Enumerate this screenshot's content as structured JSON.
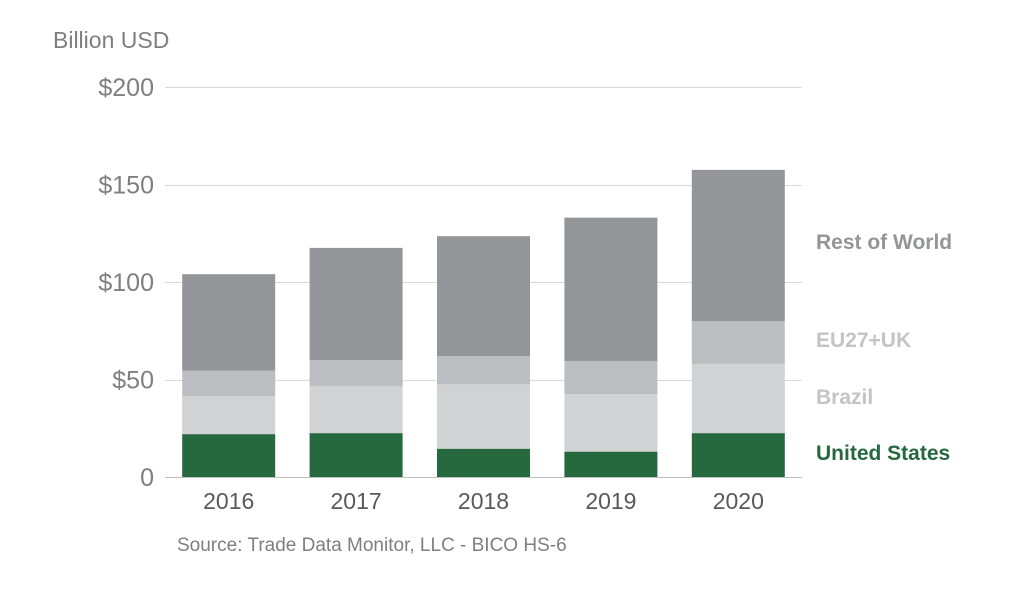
{
  "chart_data": {
    "type": "bar",
    "stacked": true,
    "ylabel": "Billion USD",
    "source": "Source: Trade Data Monitor, LLC - BICO HS-6",
    "categories": [
      "2016",
      "2017",
      "2018",
      "2019",
      "2020"
    ],
    "ylim": [
      0,
      200
    ],
    "yticks": [
      0,
      50,
      100,
      150,
      200
    ],
    "ytick_labels": [
      "0",
      "$50",
      "$100",
      "$150",
      "$200"
    ],
    "grid": true,
    "legend_position": "right",
    "series": [
      {
        "name": "United States",
        "color": "#27693f",
        "values": [
          22,
          22.5,
          14.5,
          13,
          22.5
        ]
      },
      {
        "name": "Brazil",
        "color": "#d1d2d4",
        "values": [
          19.5,
          24,
          33,
          29.5,
          35.5
        ]
      },
      {
        "name": "EU27+UK",
        "color": "#bcbdc0",
        "values": [
          13,
          13.5,
          14.5,
          17,
          22
        ]
      },
      {
        "name": "Rest of World",
        "color": "#939598",
        "values": [
          49.5,
          57.5,
          61.5,
          73.5,
          77.5
        ]
      }
    ]
  }
}
